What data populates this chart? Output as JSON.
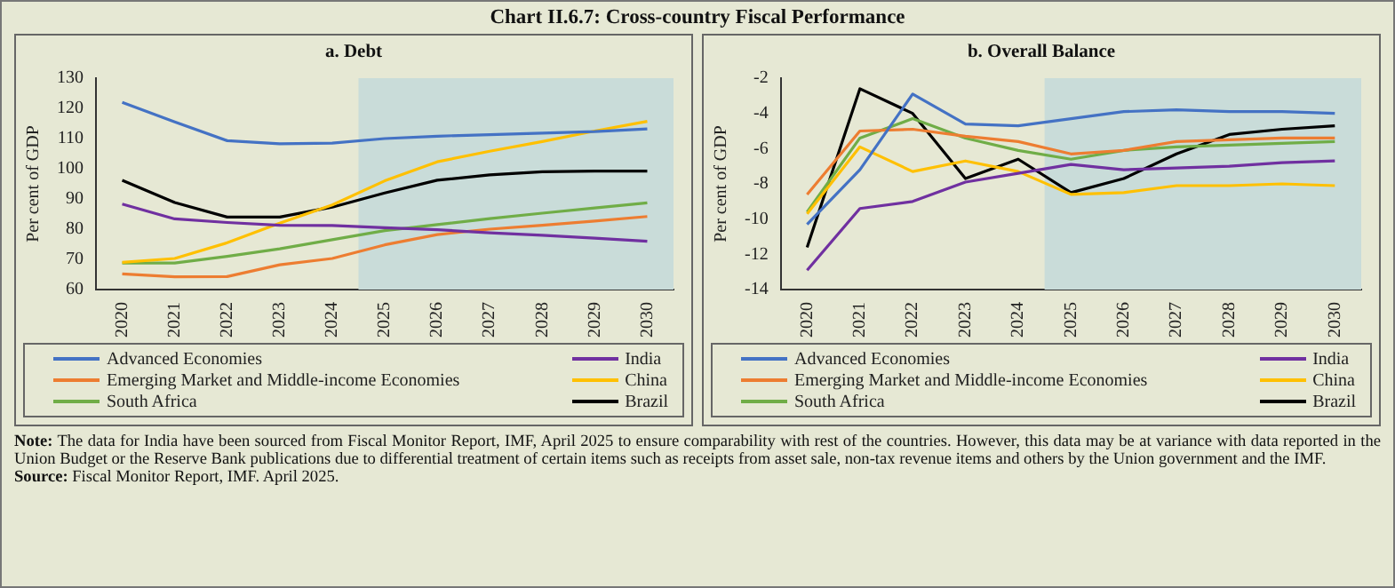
{
  "chart_data": [
    {
      "type": "line",
      "title": "Chart II.6.7: Cross-country Fiscal Performance",
      "subtitle": "a. Debt",
      "ylabel": "Per cent of GDP",
      "categories": [
        "2020",
        "2021",
        "2022",
        "2023",
        "2024",
        "2025",
        "2026",
        "2027",
        "2028",
        "2029",
        "2030"
      ],
      "series": [
        {
          "name": "Advanced Economies",
          "color": "#4472c4",
          "values": [
            122,
            115.5,
            109.3,
            108.3,
            108.5,
            110,
            110.8,
            111.3,
            111.8,
            112.3,
            113.2
          ]
        },
        {
          "name": "India",
          "color": "#7030a0",
          "values": [
            88.3,
            83.4,
            82.2,
            81.3,
            81.2,
            80.5,
            79.8,
            78.8,
            78,
            77,
            76
          ]
        },
        {
          "name": "Emerging Market and Middle-income Economies",
          "color": "#ed7d31",
          "values": [
            65.2,
            64.2,
            64.3,
            68.2,
            70.3,
            74.8,
            78.2,
            80,
            81.3,
            82.7,
            84.2
          ]
        },
        {
          "name": "China",
          "color": "#ffc000",
          "values": [
            69,
            70.3,
            75.5,
            82,
            88,
            96,
            102.3,
            105.8,
            109,
            112.5,
            115.7
          ]
        },
        {
          "name": "South Africa",
          "color": "#70ad47",
          "values": [
            68.8,
            68.8,
            71,
            73.5,
            76.5,
            79.5,
            81.5,
            83.5,
            85.3,
            87,
            88.7
          ]
        },
        {
          "name": "Brazil",
          "color": "#000000",
          "values": [
            96.2,
            88.8,
            84,
            84,
            87.3,
            92,
            96.2,
            98,
            99,
            99.2,
            99.2
          ]
        }
      ],
      "ylim": [
        60,
        130
      ],
      "yticks": [
        60,
        70,
        80,
        90,
        100,
        110,
        120,
        130
      ],
      "bands": [
        {
          "axis": "x",
          "from": "2025",
          "to": "2030",
          "color": "#c9dcd9"
        }
      ],
      "legend": "bottom",
      "marker": "none"
    },
    {
      "type": "line",
      "subtitle": "b. Overall Balance",
      "ylabel": "Per cent of GDP",
      "categories": [
        "2020",
        "2021",
        "2022",
        "2023",
        "2024",
        "2025",
        "2026",
        "2027",
        "2028",
        "2029",
        "2030"
      ],
      "series": [
        {
          "name": "Advanced Economies",
          "color": "#4472c4",
          "values": [
            -10.3,
            -7.2,
            -2.9,
            -4.6,
            -4.7,
            -4.3,
            -3.9,
            -3.8,
            -3.9,
            -3.9,
            -4.0
          ]
        },
        {
          "name": "India",
          "color": "#7030a0",
          "values": [
            -12.9,
            -9.4,
            -9.0,
            -7.9,
            -7.4,
            -6.9,
            -7.2,
            -7.1,
            -7.0,
            -6.8,
            -6.7
          ]
        },
        {
          "name": "Emerging Market and Middle-income Economies",
          "color": "#ed7d31",
          "values": [
            -8.6,
            -5.0,
            -4.9,
            -5.3,
            -5.6,
            -6.3,
            -6.1,
            -5.6,
            -5.5,
            -5.4,
            -5.4
          ]
        },
        {
          "name": "China",
          "color": "#ffc000",
          "values": [
            -9.7,
            -5.9,
            -7.3,
            -6.7,
            -7.3,
            -8.6,
            -8.5,
            -8.1,
            -8.1,
            -8.0,
            -8.1
          ]
        },
        {
          "name": "South Africa",
          "color": "#70ad47",
          "values": [
            -9.6,
            -5.4,
            -4.3,
            -5.4,
            -6.1,
            -6.6,
            -6.1,
            -5.9,
            -5.8,
            -5.7,
            -5.6
          ]
        },
        {
          "name": "Brazil",
          "color": "#000000",
          "values": [
            -11.6,
            -2.6,
            -4.0,
            -7.7,
            -6.6,
            -8.5,
            -7.7,
            -6.3,
            -5.2,
            -4.9,
            -4.7
          ]
        }
      ],
      "ylim": [
        -14,
        -2
      ],
      "yticks": [
        -14,
        -12,
        -10,
        -8,
        -6,
        -4,
        -2
      ],
      "bands": [
        {
          "axis": "x",
          "from": "2025",
          "to": "2030",
          "color": "#c9dcd9"
        }
      ],
      "legend": "bottom",
      "marker": "none",
      "annotations": [
        "Note: The data for India have been sourced from Fiscal Monitor Report, IMF, April 2025 to ensure comparability with rest of the countries. However, this data may be at variance with data reported in the Union Budget or the Reserve Bank publications due to differential treatment of certain items such as receipts from asset sale, non-tax revenue items and others by the Union government and the IMF.",
        "Source: Fiscal Monitor Report, IMF. April 2025."
      ]
    }
  ]
}
